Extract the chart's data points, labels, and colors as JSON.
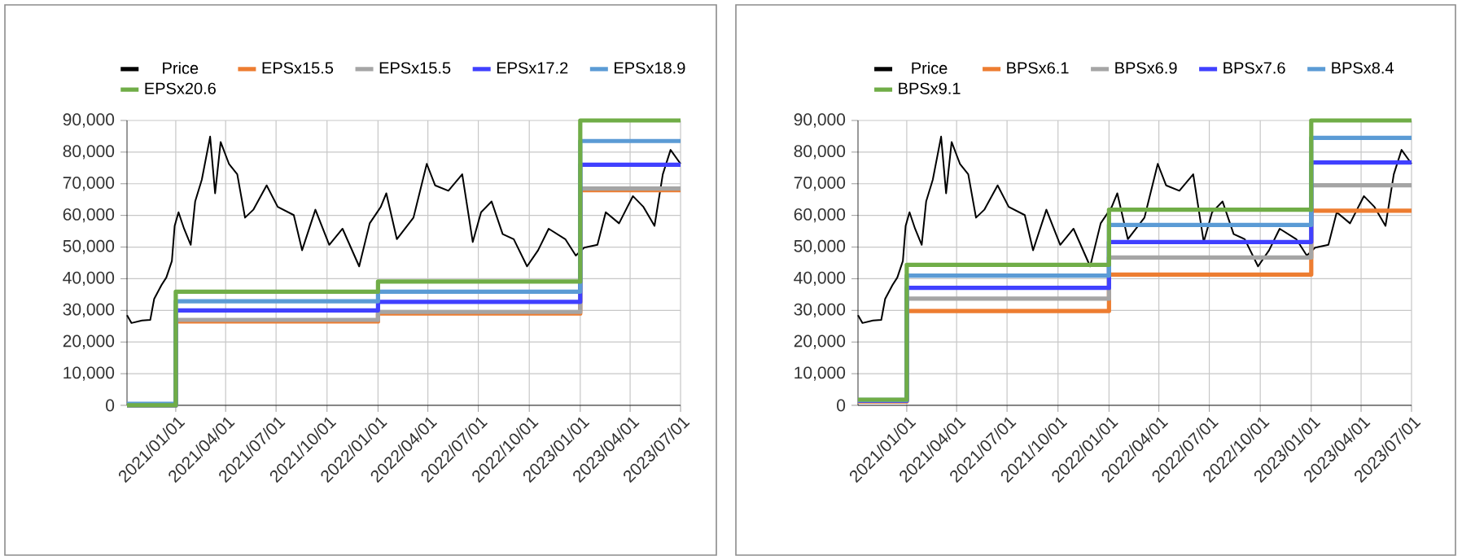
{
  "chart_data": [
    {
      "type": "line",
      "xlim": [
        "2020-10-05",
        "2023-07-01"
      ],
      "xticks": [
        {
          "value": "2021-01-01",
          "label": "2021/01/01"
        },
        {
          "value": "2021-04-01",
          "label": "2021/04/01"
        },
        {
          "value": "2021-07-01",
          "label": "2021/07/01"
        },
        {
          "value": "2021-10-01",
          "label": "2021/10/01"
        },
        {
          "value": "2022-01-01",
          "label": "2022/01/01"
        },
        {
          "value": "2022-04-01",
          "label": "2022/04/01"
        },
        {
          "value": "2022-07-01",
          "label": "2022/07/01"
        },
        {
          "value": "2022-10-01",
          "label": "2022/10/01"
        },
        {
          "value": "2023-01-01",
          "label": "2023/01/01"
        },
        {
          "value": "2023-04-01",
          "label": "2023/04/01"
        },
        {
          "value": "2023-07-01",
          "label": "2023/07/01"
        }
      ],
      "ylim": [
        0,
        90000
      ],
      "yticks": [
        0,
        {
          "value": 10000,
          "label": "10,000"
        },
        {
          "value": 20000,
          "label": "20,000"
        },
        {
          "value": 30000,
          "label": "30,000"
        },
        {
          "value": 40000,
          "label": "40,000"
        },
        {
          "value": 50000,
          "label": "50,000"
        },
        {
          "value": 60000,
          "label": "60,000"
        },
        {
          "value": 70000,
          "label": "70,000"
        },
        {
          "value": 80000,
          "label": "80,000"
        },
        {
          "value": 90000,
          "label": "90,000"
        }
      ],
      "grid": true,
      "legend": "top",
      "series": [
        {
          "name": "Price",
          "color": "#000000",
          "x": [
            "2020-10-05",
            "2020-10-13",
            "2020-11-01",
            "2020-11-16",
            "2020-11-23",
            "2020-12-06",
            "2020-12-15",
            "2020-12-25",
            "2020-12-30",
            "2021-01-06",
            "2021-01-16",
            "2021-01-28",
            "2021-02-05",
            "2021-02-17",
            "2021-03-04",
            "2021-03-13",
            "2021-03-23",
            "2021-04-07",
            "2021-04-22",
            "2021-05-06",
            "2021-05-21",
            "2021-06-14",
            "2021-07-04",
            "2021-08-02",
            "2021-08-17",
            "2021-09-10",
            "2021-10-05",
            "2021-10-29",
            "2021-11-28",
            "2021-12-17",
            "2022-01-06",
            "2022-01-16",
            "2022-02-04",
            "2022-03-06",
            "2022-03-30",
            "2022-04-14",
            "2022-05-08",
            "2022-06-02",
            "2022-06-21",
            "2022-07-06",
            "2022-07-25",
            "2022-08-14",
            "2022-09-03",
            "2022-09-27",
            "2022-10-17",
            "2022-11-05",
            "2022-12-05",
            "2022-12-24",
            "2023-01-08",
            "2023-02-01",
            "2023-02-16",
            "2023-03-12",
            "2023-04-06",
            "2023-04-25",
            "2023-05-15",
            "2023-05-30",
            "2023-06-13",
            "2023-07-01"
          ],
          "values": [
            28500,
            26000,
            26800,
            27000,
            33600,
            37900,
            40400,
            45600,
            56700,
            61000,
            55800,
            50700,
            64400,
            71300,
            84900,
            67000,
            83200,
            76300,
            73000,
            59300,
            61800,
            69500,
            62700,
            60100,
            49000,
            61800,
            50700,
            55800,
            43900,
            57500,
            62700,
            67000,
            52500,
            59300,
            76300,
            69500,
            67800,
            73000,
            51600,
            61000,
            64400,
            54100,
            52500,
            43900,
            49000,
            55800,
            52500,
            47300,
            49800,
            50700,
            61000,
            57500,
            66100,
            62700,
            56700,
            73000,
            80700,
            76300
          ]
        },
        {
          "name": "EPSx15.5",
          "type": "step",
          "color": "#ed7d31",
          "x": [
            "2020-10-05",
            "2021-01-01",
            "2022-01-01",
            "2023-01-01",
            "2023-07-01"
          ],
          "values": [
            0,
            26500,
            29000,
            68000,
            68000
          ]
        },
        {
          "name": "EPSx15.5",
          "type": "step",
          "color": "#a5a5a5",
          "x": [
            "2020-10-05",
            "2021-01-01",
            "2022-01-01",
            "2023-01-01",
            "2023-07-01"
          ],
          "values": [
            0,
            27000,
            29500,
            68500,
            68500
          ]
        },
        {
          "name": "EPSx17.2",
          "type": "step",
          "color": "#4040ff",
          "x": [
            "2020-10-05",
            "2021-01-01",
            "2022-01-01",
            "2023-01-01",
            "2023-07-01"
          ],
          "values": [
            0,
            30000,
            32700,
            76000,
            76000
          ]
        },
        {
          "name": "EPSx18.9",
          "type": "step",
          "color": "#5b9bd5",
          "x": [
            "2020-10-05",
            "2021-01-01",
            "2022-01-01",
            "2023-01-01",
            "2023-07-01"
          ],
          "values": [
            500,
            32900,
            35900,
            83500,
            83500
          ]
        },
        {
          "name": "EPSx20.6",
          "type": "step",
          "color": "#70ad47",
          "x": [
            "2020-10-05",
            "2021-01-01",
            "2022-01-01",
            "2023-01-01",
            "2023-07-01"
          ],
          "values": [
            0,
            35900,
            39100,
            90000,
            90000
          ]
        }
      ]
    },
    {
      "type": "line",
      "xlim": [
        "2020-10-05",
        "2023-07-01"
      ],
      "xticks": [
        {
          "value": "2021-01-01",
          "label": "2021/01/01"
        },
        {
          "value": "2021-04-01",
          "label": "2021/04/01"
        },
        {
          "value": "2021-07-01",
          "label": "2021/07/01"
        },
        {
          "value": "2021-10-01",
          "label": "2021/10/01"
        },
        {
          "value": "2022-01-01",
          "label": "2022/01/01"
        },
        {
          "value": "2022-04-01",
          "label": "2022/04/01"
        },
        {
          "value": "2022-07-01",
          "label": "2022/07/01"
        },
        {
          "value": "2022-10-01",
          "label": "2022/10/01"
        },
        {
          "value": "2023-01-01",
          "label": "2023/01/01"
        },
        {
          "value": "2023-04-01",
          "label": "2023/04/01"
        },
        {
          "value": "2023-07-01",
          "label": "2023/07/01"
        }
      ],
      "ylim": [
        0,
        90000
      ],
      "yticks": [
        0,
        {
          "value": 10000,
          "label": "10,000"
        },
        {
          "value": 20000,
          "label": "20,000"
        },
        {
          "value": 30000,
          "label": "30,000"
        },
        {
          "value": 40000,
          "label": "40,000"
        },
        {
          "value": 50000,
          "label": "50,000"
        },
        {
          "value": 60000,
          "label": "60,000"
        },
        {
          "value": 70000,
          "label": "70,000"
        },
        {
          "value": 80000,
          "label": "80,000"
        },
        {
          "value": 90000,
          "label": "90,000"
        }
      ],
      "grid": true,
      "legend": "top",
      "series": [
        {
          "name": "Price",
          "color": "#000000",
          "x": [
            "2020-10-05",
            "2020-10-13",
            "2020-11-01",
            "2020-11-16",
            "2020-11-23",
            "2020-12-06",
            "2020-12-15",
            "2020-12-25",
            "2020-12-30",
            "2021-01-06",
            "2021-01-16",
            "2021-01-28",
            "2021-02-05",
            "2021-02-17",
            "2021-03-04",
            "2021-03-13",
            "2021-03-23",
            "2021-04-07",
            "2021-04-22",
            "2021-05-06",
            "2021-05-21",
            "2021-06-14",
            "2021-07-04",
            "2021-08-02",
            "2021-08-17",
            "2021-09-10",
            "2021-10-05",
            "2021-10-29",
            "2021-11-28",
            "2021-12-17",
            "2022-01-06",
            "2022-01-16",
            "2022-02-04",
            "2022-03-06",
            "2022-03-30",
            "2022-04-14",
            "2022-05-08",
            "2022-06-02",
            "2022-06-21",
            "2022-07-06",
            "2022-07-25",
            "2022-08-14",
            "2022-09-03",
            "2022-09-27",
            "2022-10-17",
            "2022-11-05",
            "2022-12-05",
            "2022-12-24",
            "2023-01-08",
            "2023-02-01",
            "2023-02-16",
            "2023-03-12",
            "2023-04-06",
            "2023-04-25",
            "2023-05-15",
            "2023-05-30",
            "2023-06-13",
            "2023-07-01"
          ],
          "values": [
            28500,
            26000,
            26800,
            27000,
            33600,
            37900,
            40400,
            45600,
            56700,
            61000,
            55800,
            50700,
            64400,
            71300,
            84900,
            67000,
            83200,
            76300,
            73000,
            59300,
            61800,
            69500,
            62700,
            60100,
            49000,
            61800,
            50700,
            55800,
            43900,
            57500,
            62700,
            67000,
            52500,
            59300,
            76300,
            69500,
            67800,
            73000,
            51600,
            61000,
            64400,
            54100,
            52500,
            43900,
            49000,
            55800,
            52500,
            47300,
            49800,
            50700,
            61000,
            57500,
            66100,
            62700,
            56700,
            73000,
            80700,
            76300
          ]
        },
        {
          "name": "BPSx6.1",
          "type": "step",
          "color": "#ed7d31",
          "x": [
            "2020-10-05",
            "2021-01-01",
            "2022-01-01",
            "2023-01-01",
            "2023-07-01"
          ],
          "values": [
            1200,
            29800,
            41300,
            61500,
            61500
          ]
        },
        {
          "name": "BPSx6.9",
          "type": "step",
          "color": "#a5a5a5",
          "x": [
            "2020-10-05",
            "2021-01-01",
            "2022-01-01",
            "2023-01-01",
            "2023-07-01"
          ],
          "values": [
            1400,
            33700,
            46700,
            69500,
            69500
          ]
        },
        {
          "name": "BPSx7.6",
          "type": "step",
          "color": "#4040ff",
          "x": [
            "2020-10-05",
            "2021-01-01",
            "2022-01-01",
            "2023-01-01",
            "2023-07-01"
          ],
          "values": [
            1500,
            37100,
            51600,
            76700,
            76700
          ]
        },
        {
          "name": "BPSx8.4",
          "type": "step",
          "color": "#5b9bd5",
          "x": [
            "2020-10-05",
            "2021-01-01",
            "2022-01-01",
            "2023-01-01",
            "2023-07-01"
          ],
          "values": [
            1700,
            41000,
            57000,
            84500,
            84500
          ]
        },
        {
          "name": "BPSx9.1",
          "type": "step",
          "color": "#70ad47",
          "x": [
            "2020-10-05",
            "2021-01-01",
            "2022-01-01",
            "2023-01-01",
            "2023-07-01"
          ],
          "values": [
            1800,
            44400,
            61800,
            90000,
            90000
          ]
        }
      ]
    }
  ]
}
